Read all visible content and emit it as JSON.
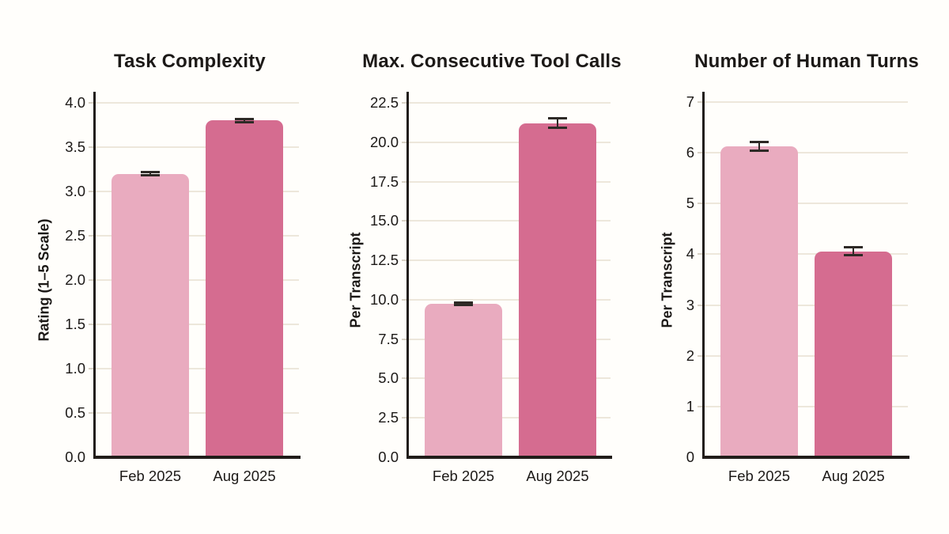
{
  "figure": {
    "background": "#fffefb"
  },
  "colors": {
    "bar_feb": "#e9abbf",
    "bar_aug": "#d56c90",
    "grid": "#ede7db",
    "tick_stub": "#d8d2c6",
    "axis": "#211d1a",
    "error": "#2e2a26",
    "text": "#1c1917"
  },
  "chart_data": [
    {
      "type": "bar",
      "title": "Task Complexity",
      "ylabel": "Rating (1–5 Scale)",
      "categories": [
        "Feb 2025",
        "Aug 2025"
      ],
      "values": [
        3.2,
        3.8
      ],
      "errors": [
        0.02,
        0.02
      ],
      "ylim": [
        0,
        4
      ],
      "yticks": [
        "0.0",
        "0.5",
        "1.0",
        "1.5",
        "2.0",
        "2.5",
        "3.0",
        "3.5",
        "4.0"
      ],
      "grid": true,
      "legend": false
    },
    {
      "type": "bar",
      "title": "Max. Consecutive Tool Calls",
      "ylabel": "Per Transcript",
      "categories": [
        "Feb 2025",
        "Aug 2025"
      ],
      "values": [
        9.75,
        21.2
      ],
      "errors": [
        0.08,
        0.3
      ],
      "ylim": [
        0,
        22.5
      ],
      "yticks": [
        "0.0",
        "2.5",
        "5.0",
        "7.5",
        "10.0",
        "12.5",
        "15.0",
        "17.5",
        "20.0",
        "22.5"
      ],
      "grid": true,
      "legend": false
    },
    {
      "type": "bar",
      "title": "Number of Human Turns",
      "ylabel": "Per Transcript",
      "categories": [
        "Feb 2025",
        "Aug 2025"
      ],
      "values": [
        6.13,
        4.06
      ],
      "errors": [
        0.09,
        0.08
      ],
      "ylim": [
        0,
        7
      ],
      "yticks": [
        "0",
        "1",
        "2",
        "3",
        "4",
        "5",
        "6",
        "7"
      ],
      "grid": true,
      "legend": false
    }
  ]
}
